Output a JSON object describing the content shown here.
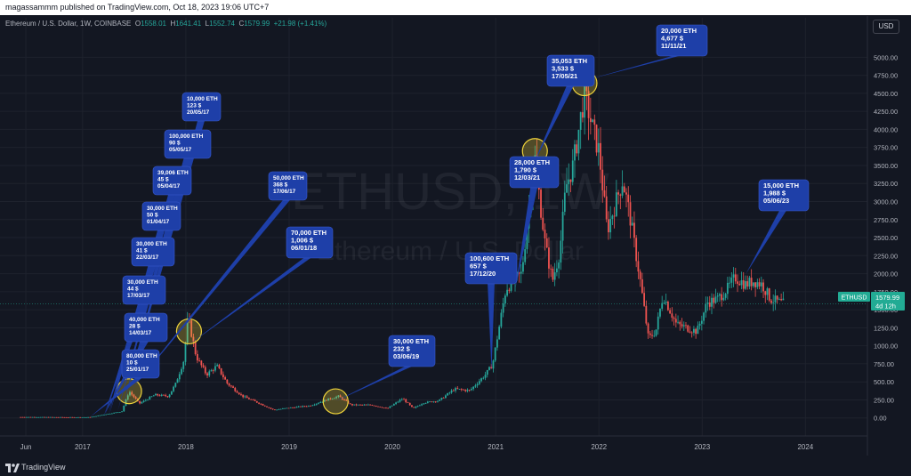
{
  "header": {
    "published": "magassammm published on TradingView.com, Oct 18, 2023 19:06 UTC+7"
  },
  "symbol": {
    "name": "Ethereum / U.S. Dollar, 1W, COINBASE",
    "o_label": "O",
    "o_value": "1558.01",
    "h_label": "H",
    "h_value": "1641.41",
    "l_label": "L",
    "l_value": "1552.74",
    "c_label": "C",
    "c_value": "1579.99",
    "change": "+21.98 (+1.41%)"
  },
  "currency_button": "USD",
  "watermark": {
    "main": "ETHUSD, 1W",
    "sub": "Ethereum / U.S. Dollar"
  },
  "price_tag": {
    "symbol": "ETHUSD",
    "price": "1579.99",
    "countdown": "4d 12h"
  },
  "footer": {
    "brand": "TradingView"
  },
  "colors": {
    "background": "#131722",
    "up": "#26a69a",
    "down": "#ef5350",
    "callout": "#1e3fa8",
    "circle": "#f0d43a",
    "price_tag": "#22ab94"
  },
  "chart_data": {
    "type": "candlestick",
    "title": "Ethereum / U.S. Dollar, 1W, COINBASE",
    "ylim": [
      -250,
      5300
    ],
    "y_ticks": [
      0,
      250,
      500,
      750,
      1000,
      1250,
      1500,
      1750,
      2000,
      2250,
      2500,
      2750,
      3000,
      3250,
      3500,
      3750,
      4000,
      4250,
      4500,
      4750,
      5000
    ],
    "y_tick_labels": [
      "0.00",
      "250.00",
      "500.00",
      "750.00",
      "1000.00",
      "1250.00",
      "1500.00",
      "1750.00",
      "2000.00",
      "2250.00",
      "2500.00",
      "2750.00",
      "3000.00",
      "3250.00",
      "3500.00",
      "3750.00",
      "4000.00",
      "4250.00",
      "4500.00",
      "4750.00",
      "5000.00"
    ],
    "x_range": [
      2016.2,
      2024.6
    ],
    "x_ticks": [
      {
        "t": 2016.45,
        "label": "Jun"
      },
      {
        "t": 2017.0,
        "label": "2017"
      },
      {
        "t": 2018.0,
        "label": "2018"
      },
      {
        "t": 2019.0,
        "label": "2019"
      },
      {
        "t": 2020.0,
        "label": "2020"
      },
      {
        "t": 2021.0,
        "label": "2021"
      },
      {
        "t": 2022.0,
        "label": "2022"
      },
      {
        "t": 2023.0,
        "label": "2023"
      },
      {
        "t": 2024.0,
        "label": "2024"
      }
    ],
    "price_path": [
      [
        2016.0,
        12
      ],
      [
        2016.5,
        12
      ],
      [
        2016.9,
        9
      ],
      [
        2017.07,
        10
      ],
      [
        2017.2,
        45
      ],
      [
        2017.38,
        90
      ],
      [
        2017.45,
        370
      ],
      [
        2017.55,
        200
      ],
      [
        2017.7,
        320
      ],
      [
        2017.83,
        300
      ],
      [
        2017.9,
        470
      ],
      [
        2017.98,
        800
      ],
      [
        2018.02,
        1400
      ],
      [
        2018.1,
        850
      ],
      [
        2018.2,
        600
      ],
      [
        2018.3,
        720
      ],
      [
        2018.4,
        480
      ],
      [
        2018.55,
        300
      ],
      [
        2018.7,
        210
      ],
      [
        2018.85,
        110
      ],
      [
        2019.0,
        140
      ],
      [
        2019.2,
        170
      ],
      [
        2019.4,
        270
      ],
      [
        2019.48,
        300
      ],
      [
        2019.6,
        180
      ],
      [
        2019.8,
        180
      ],
      [
        2019.95,
        130
      ],
      [
        2020.1,
        270
      ],
      [
        2020.2,
        130
      ],
      [
        2020.3,
        210
      ],
      [
        2020.45,
        240
      ],
      [
        2020.6,
        400
      ],
      [
        2020.75,
        380
      ],
      [
        2020.9,
        600
      ],
      [
        2020.97,
        740
      ],
      [
        2021.1,
        1800
      ],
      [
        2021.25,
        2000
      ],
      [
        2021.38,
        3600
      ],
      [
        2021.48,
        2400
      ],
      [
        2021.55,
        1900
      ],
      [
        2021.62,
        2300
      ],
      [
        2021.68,
        3200
      ],
      [
        2021.75,
        3500
      ],
      [
        2021.86,
        4500
      ],
      [
        2021.94,
        4000
      ],
      [
        2022.0,
        3700
      ],
      [
        2022.08,
        2600
      ],
      [
        2022.23,
        3300
      ],
      [
        2022.3,
        2800
      ],
      [
        2022.4,
        1900
      ],
      [
        2022.48,
        1100
      ],
      [
        2022.55,
        1200
      ],
      [
        2022.62,
        1700
      ],
      [
        2022.75,
        1300
      ],
      [
        2022.85,
        1250
      ],
      [
        2022.95,
        1200
      ],
      [
        2023.05,
        1600
      ],
      [
        2023.15,
        1650
      ],
      [
        2023.25,
        1800
      ],
      [
        2023.32,
        1950
      ],
      [
        2023.42,
        1850
      ],
      [
        2023.5,
        1900
      ],
      [
        2023.58,
        1850
      ],
      [
        2023.66,
        1650
      ],
      [
        2023.75,
        1600
      ],
      [
        2023.8,
        1580
      ]
    ],
    "callouts": [
      {
        "lines": [
          "10,000 ETH",
          "123 $",
          "20/05/17"
        ],
        "target": [
          2017.38,
          110
        ]
      },
      {
        "lines": [
          "100,000 ETH",
          "90 $",
          "05/05/17"
        ],
        "target": [
          2017.34,
          95
        ]
      },
      {
        "lines": [
          "39,006 ETH",
          "45 $",
          "05/04/17"
        ],
        "target": [
          2017.26,
          50
        ]
      },
      {
        "lines": [
          "30,000 ETH",
          "50 $",
          "01/04/17"
        ],
        "target": [
          2017.25,
          50
        ]
      },
      {
        "lines": [
          "30,000 ETH",
          "41 $",
          "22/03/17"
        ],
        "target": [
          2017.22,
          42
        ]
      },
      {
        "lines": [
          "30,000 ETH",
          "44 $",
          "17/03/17"
        ],
        "target": [
          2017.21,
          44
        ]
      },
      {
        "lines": [
          "40,000 ETH",
          "28 $",
          "14/03/17"
        ],
        "target": [
          2017.2,
          28
        ]
      },
      {
        "lines": [
          "80,000 ETH",
          "10 $",
          "25/01/17"
        ],
        "target": [
          2017.07,
          10
        ]
      },
      {
        "lines": [
          "50,000 ETH",
          "368 $",
          "17/06/17"
        ],
        "target": [
          2017.46,
          368
        ]
      },
      {
        "lines": [
          "70,000 ETH",
          "1,006 $",
          "06/01/18"
        ],
        "target": [
          2018.02,
          1006
        ]
      },
      {
        "lines": [
          "30,000 ETH",
          "232 $",
          "03/06/19"
        ],
        "target": [
          2019.45,
          232
        ]
      },
      {
        "lines": [
          "100,600 ETH",
          "657 $",
          "17/12/20"
        ],
        "target": [
          2020.96,
          657
        ]
      },
      {
        "lines": [
          "28,000 ETH",
          "1,790 $",
          "12/03/21"
        ],
        "target": [
          2021.19,
          1790
        ]
      },
      {
        "lines": [
          "35,053 ETH",
          "3,533 $",
          "17/05/21"
        ],
        "target": [
          2021.37,
          3533
        ]
      },
      {
        "lines": [
          "20,000 ETH",
          "4,677 $",
          "11/11/21"
        ],
        "target": [
          2021.86,
          4677
        ]
      },
      {
        "lines": [
          "15,000 ETH",
          "1,988 $",
          "05/06/23"
        ],
        "target": [
          2023.42,
          1988
        ]
      }
    ],
    "highlight_circles": [
      {
        "center": [
          2017.45,
          370
        ]
      },
      {
        "center": [
          2018.03,
          1200
        ]
      },
      {
        "center": [
          2019.45,
          230
        ]
      },
      {
        "center": [
          2021.38,
          3700
        ]
      },
      {
        "center": [
          2021.86,
          4640
        ]
      }
    ]
  }
}
